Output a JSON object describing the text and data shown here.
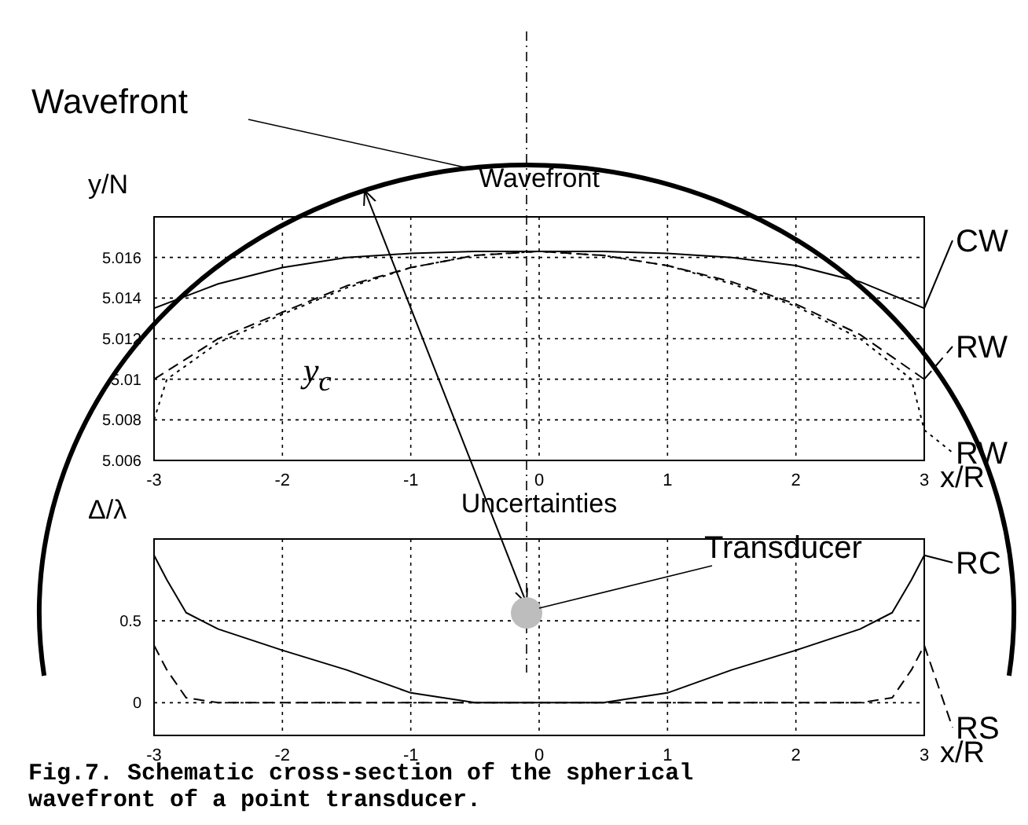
{
  "chart_data": [
    {
      "type": "line",
      "title": "Wavefront",
      "xlabel": "x/R",
      "ylabel": "y/N",
      "xlim": [
        -3,
        3
      ],
      "xticks": [
        -3,
        -2,
        -1,
        0,
        1,
        2,
        3
      ],
      "ylim": [
        5.006,
        5.018
      ],
      "yticks": [
        5.006,
        5.008,
        5.01,
        5.012,
        5.014,
        5.016
      ],
      "grid": true,
      "annotations": [
        "Wavefront",
        "y$_{c}$"
      ],
      "series": [
        {
          "name": "CW",
          "color": "#000000",
          "line_style": "solid",
          "x": [
            -3,
            -2.5,
            -2,
            -1.5,
            -1,
            -0.5,
            0,
            0.5,
            1,
            1.5,
            2,
            2.5,
            3
          ],
          "values": [
            5.0135,
            5.0147,
            5.0155,
            5.016,
            5.0162,
            5.0163,
            5.0163,
            5.0163,
            5.0162,
            5.016,
            5.0156,
            5.0148,
            5.0135
          ]
        },
        {
          "name": "RW",
          "color": "#000000",
          "line_style": "dashed",
          "x": [
            -3,
            -2.5,
            -2,
            -1.5,
            -1,
            -0.5,
            0,
            0.5,
            1,
            1.5,
            2,
            2.5,
            3
          ],
          "values": [
            5.01,
            5.012,
            5.0133,
            5.0146,
            5.0155,
            5.0161,
            5.0163,
            5.0161,
            5.0156,
            5.0148,
            5.0137,
            5.0122,
            5.01
          ]
        },
        {
          "name": "RW",
          "color": "#000000",
          "line_style": "dotted",
          "x": [
            -3,
            -2.9,
            -2.5,
            -2,
            -1.5,
            -1,
            -0.5,
            0,
            0.5,
            1,
            1.5,
            2,
            2.5,
            2.9,
            3
          ],
          "values": [
            5.008,
            5.01,
            5.0118,
            5.0132,
            5.0145,
            5.0155,
            5.0161,
            5.0163,
            5.0161,
            5.0156,
            5.0147,
            5.0136,
            5.012,
            5.01,
            5.0075
          ]
        }
      ]
    },
    {
      "type": "line",
      "title": "Uncertainties",
      "xlabel": "x/R",
      "ylabel": "Δ/λ",
      "xlim": [
        -3,
        3
      ],
      "xticks": [
        -3,
        -2,
        -1,
        0,
        1,
        2,
        3
      ],
      "ylim": [
        -0.2,
        1
      ],
      "yticks": [
        0,
        0.5
      ],
      "grid": true,
      "annotations": [
        "Transducer",
        "Fig.7. Schematic cross-section of the spherical wavefront of a point transducer."
      ],
      "series": [
        {
          "name": "RC",
          "color": "#000000",
          "line_style": "solid",
          "x": [
            -3,
            -2.9,
            -2.75,
            -2.5,
            -2,
            -1.5,
            -1,
            -0.5,
            0,
            0.5,
            1,
            1.5,
            2,
            2.5,
            2.75,
            2.9,
            3
          ],
          "values": [
            0.9,
            0.75,
            0.55,
            0.45,
            0.32,
            0.2,
            0.06,
            0,
            0,
            0,
            0.06,
            0.2,
            0.32,
            0.45,
            0.55,
            0.75,
            0.9
          ]
        },
        {
          "name": "RS",
          "color": "#000000",
          "line_style": "dashed",
          "x": [
            -3,
            -2.9,
            -2.75,
            -2.5,
            0,
            2.5,
            2.75,
            2.9,
            3
          ],
          "values": [
            0.35,
            0.2,
            0.03,
            0,
            0,
            0,
            0.03,
            0.2,
            0.35
          ]
        }
      ]
    }
  ]
}
